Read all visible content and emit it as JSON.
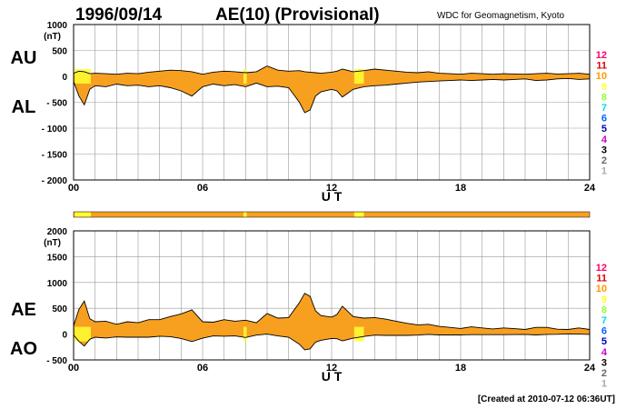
{
  "header": {
    "date": "1996/09/14",
    "title": "AE(10) (Provisional)",
    "source": "WDC for Geomagnetism, Kyoto"
  },
  "footer": {
    "created": "[Created at 2010-07-12 06:36UT]"
  },
  "colors": {
    "fill": "#f7a020",
    "fill_alt": "#ffff33",
    "outline": "#000000",
    "grid": "#999999"
  },
  "station_scale": {
    "labels": [
      "12",
      "11",
      "10",
      "9",
      "8",
      "7",
      "6",
      "5",
      "4",
      "3",
      "2",
      "1"
    ],
    "colors": [
      "#ff0066",
      "#dd0000",
      "#ff9900",
      "#ffff33",
      "#99ff33",
      "#00dddd",
      "#0066ff",
      "#0000aa",
      "#cc00cc",
      "#000000",
      "#666666",
      "#aaaaaa"
    ]
  },
  "chart_data": [
    {
      "type": "area",
      "panel": "AU/AL",
      "labels_upper": "AU",
      "labels_lower": "AL",
      "unit": "(nT)",
      "xlabel": "U T",
      "xlim": [
        0,
        24
      ],
      "xticks": [
        0,
        6,
        12,
        18,
        24
      ],
      "xtick_labels": [
        "00",
        "06",
        "12",
        "18",
        "24"
      ],
      "ylim": [
        -2000,
        1000
      ],
      "yticks": [
        1000,
        500,
        0,
        -500,
        -1000,
        -1500,
        -2000
      ],
      "ytick_labels": [
        "1000",
        "500",
        "0",
        "- 500",
        "- 1000",
        "- 1500",
        "- 2000"
      ],
      "grid": true,
      "x": [
        0,
        0.25,
        0.5,
        0.75,
        1,
        1.5,
        2,
        2.5,
        3,
        3.5,
        4,
        4.5,
        5,
        5.5,
        6,
        6.5,
        7,
        7.5,
        8,
        8.5,
        9,
        9.5,
        10,
        10.5,
        10.75,
        11,
        11.25,
        11.5,
        12,
        12.25,
        12.5,
        13,
        13.5,
        14,
        14.5,
        15,
        15.5,
        16,
        16.5,
        17,
        17.5,
        18,
        18.5,
        19,
        19.5,
        20,
        20.5,
        21,
        21.5,
        22,
        22.5,
        23,
        23.5,
        24
      ],
      "series": [
        {
          "values": [
            60,
            100,
            90,
            50,
            60,
            50,
            40,
            60,
            50,
            80,
            100,
            120,
            110,
            90,
            40,
            80,
            100,
            90,
            70,
            90,
            200,
            120,
            100,
            110,
            90,
            80,
            70,
            60,
            80,
            100,
            140,
            90,
            110,
            140,
            120,
            100,
            80,
            70,
            90,
            60,
            50,
            40,
            60,
            50,
            40,
            50,
            45,
            40,
            50,
            60,
            45,
            50,
            60,
            40
          ]
        },
        {
          "values": [
            -100,
            -380,
            -550,
            -250,
            -180,
            -200,
            -150,
            -180,
            -170,
            -200,
            -180,
            -220,
            -280,
            -380,
            -200,
            -150,
            -180,
            -160,
            -200,
            -130,
            -200,
            -190,
            -220,
            -500,
            -700,
            -650,
            -380,
            -300,
            -250,
            -280,
            -400,
            -250,
            -200,
            -180,
            -170,
            -150,
            -130,
            -110,
            -100,
            -90,
            -80,
            -70,
            -80,
            -70,
            -60,
            -70,
            -60,
            -50,
            -80,
            -70,
            -50,
            -40,
            -60,
            -50
          ]
        }
      ]
    },
    {
      "type": "area",
      "panel": "AE/AO",
      "labels_upper": "AE",
      "labels_lower": "AO",
      "unit": "(nT)",
      "xlabel": "U T",
      "xlim": [
        0,
        24
      ],
      "xticks": [
        0,
        6,
        12,
        18,
        24
      ],
      "xtick_labels": [
        "00",
        "06",
        "12",
        "18",
        "24"
      ],
      "ylim": [
        -500,
        2000
      ],
      "yticks": [
        2000,
        1500,
        1000,
        500,
        0,
        -500
      ],
      "ytick_labels": [
        "2000",
        "1500",
        "1000",
        "500",
        "0",
        "- 500"
      ],
      "grid": true,
      "x": [
        0,
        0.25,
        0.5,
        0.75,
        1,
        1.5,
        2,
        2.5,
        3,
        3.5,
        4,
        4.5,
        5,
        5.5,
        6,
        6.5,
        7,
        7.5,
        8,
        8.5,
        9,
        9.5,
        10,
        10.5,
        10.75,
        11,
        11.25,
        11.5,
        12,
        12.25,
        12.5,
        13,
        13.5,
        14,
        14.5,
        15,
        15.5,
        16,
        16.5,
        17,
        17.5,
        18,
        18.5,
        19,
        19.5,
        20,
        20.5,
        21,
        21.5,
        22,
        22.5,
        23,
        23.5,
        24
      ],
      "series": [
        {
          "values": [
            160,
            480,
            640,
            300,
            240,
            250,
            190,
            240,
            220,
            280,
            280,
            340,
            390,
            470,
            240,
            230,
            280,
            250,
            270,
            220,
            400,
            310,
            320,
            610,
            790,
            730,
            450,
            360,
            330,
            380,
            540,
            340,
            310,
            320,
            290,
            250,
            210,
            180,
            190,
            150,
            130,
            110,
            140,
            120,
            100,
            120,
            105,
            90,
            130,
            130,
            95,
            90,
            120,
            90
          ]
        },
        {
          "values": [
            -20,
            -140,
            -230,
            -100,
            -60,
            -75,
            -55,
            -60,
            -60,
            -60,
            -40,
            -50,
            -85,
            -145,
            -80,
            -35,
            -40,
            -35,
            -65,
            -20,
            0,
            -35,
            -60,
            -195,
            -305,
            -285,
            -155,
            -120,
            -85,
            -90,
            -130,
            -80,
            -45,
            -20,
            -25,
            -25,
            -25,
            -20,
            -5,
            -15,
            -15,
            -15,
            -10,
            -10,
            -10,
            -10,
            -8,
            -5,
            -15,
            -5,
            -3,
            5,
            0,
            -5
          ]
        }
      ]
    }
  ]
}
